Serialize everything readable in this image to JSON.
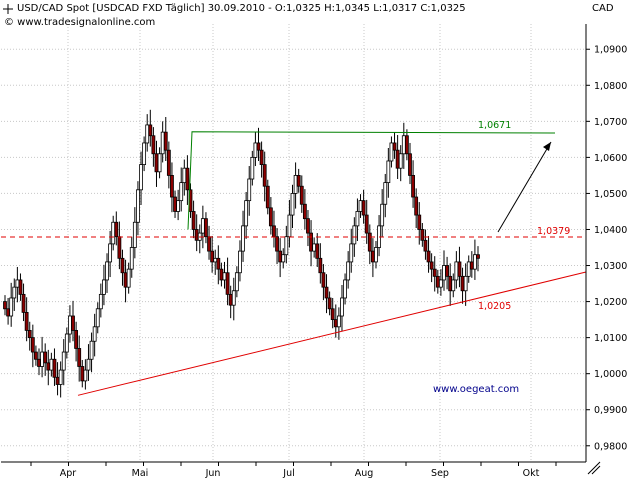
{
  "header": {
    "line1": "USD/CAD Spot [USDCAD FXD  Täglich] 30.09.2010 - O:1,0325 H:1,0345 L:1,0317 C:1,0325",
    "line2": "© www.tradesignalonline.com",
    "currency": "CAD"
  },
  "chart_data": {
    "type": "candlestick",
    "title": "USD/CAD Spot [USDCAD FXD  Täglich] 30.09.2010",
    "ohlc_last": {
      "open": 1.0325,
      "high": 1.0345,
      "low": 1.0317,
      "close": 1.0325
    },
    "ylim": [
      0.9755,
      1.097
    ],
    "yticks": [
      "1,0900",
      "1,0800",
      "1,0700",
      "1,0600",
      "1,0500",
      "1,0400",
      "1,0300",
      "1,0200",
      "1,0100",
      "1,0000",
      "0,9900",
      "0,9800"
    ],
    "ytick_values": [
      1.09,
      1.08,
      1.07,
      1.06,
      1.05,
      1.04,
      1.03,
      1.02,
      1.01,
      1.0,
      0.99,
      0.98
    ],
    "xticks": [
      "Apr",
      "Mai",
      "Jun",
      "Jul",
      "Aug",
      "Sep",
      "Okt"
    ],
    "closes": [
      1.018,
      1.016,
      1.021,
      1.024,
      1.026,
      1.022,
      1.017,
      1.012,
      1.01,
      1.006,
      1.004,
      1.002,
      1.006,
      1.003,
      1.001,
      1.004,
      0.999,
      0.997,
      1.001,
      1.006,
      1.011,
      1.016,
      1.012,
      1.007,
      1.002,
      0.998,
      1.001,
      1.004,
      1.009,
      1.013,
      1.018,
      1.022,
      1.026,
      1.031,
      1.036,
      1.042,
      1.038,
      1.032,
      1.028,
      1.024,
      1.029,
      1.035,
      1.042,
      1.051,
      1.058,
      1.064,
      1.069,
      1.066,
      1.061,
      1.056,
      1.061,
      1.067,
      1.062,
      1.055,
      1.049,
      1.045,
      1.048,
      1.053,
      1.057,
      1.051,
      1.045,
      1.04,
      1.037,
      1.039,
      1.043,
      1.038,
      1.034,
      1.031,
      1.032,
      1.029,
      1.026,
      1.028,
      1.022,
      1.019,
      1.023,
      1.028,
      1.034,
      1.041,
      1.048,
      1.054,
      1.06,
      1.064,
      1.062,
      1.058,
      1.052,
      1.046,
      1.041,
      1.038,
      1.034,
      1.031,
      1.033,
      1.038,
      1.044,
      1.05,
      1.055,
      1.052,
      1.047,
      1.043,
      1.039,
      1.034,
      1.036,
      1.032,
      1.028,
      1.024,
      1.021,
      1.018,
      1.015,
      1.013,
      1.016,
      1.021,
      1.026,
      1.031,
      1.036,
      1.041,
      1.045,
      1.048,
      1.044,
      1.039,
      1.034,
      1.031,
      1.035,
      1.041,
      1.047,
      1.053,
      1.059,
      1.064,
      1.062,
      1.057,
      1.061,
      1.066,
      1.061,
      1.055,
      1.049,
      1.044,
      1.04,
      1.037,
      1.034,
      1.031,
      1.029,
      1.027,
      1.024,
      1.026,
      1.03,
      1.027,
      1.023,
      1.026,
      1.031,
      1.027,
      1.023,
      1.027,
      1.031,
      1.029,
      1.033,
      1.032
    ],
    "lines": [
      {
        "name": "resistance",
        "label": "1,0671",
        "value": 1.0671,
        "color": "#008000"
      },
      {
        "name": "horizontal",
        "label": "1,0379",
        "value": 1.0379,
        "color": "#e00000",
        "style": "dashed"
      },
      {
        "name": "support-trendline",
        "label": "1,0205",
        "start": [
          "Apr",
          0.994
        ],
        "value_at_label": 1.0205,
        "color": "#e00000"
      }
    ],
    "watermark": "www.oegeat.com",
    "candle_up_color": "#ffffff",
    "candle_down_color": "#8b0000",
    "grid": true
  }
}
